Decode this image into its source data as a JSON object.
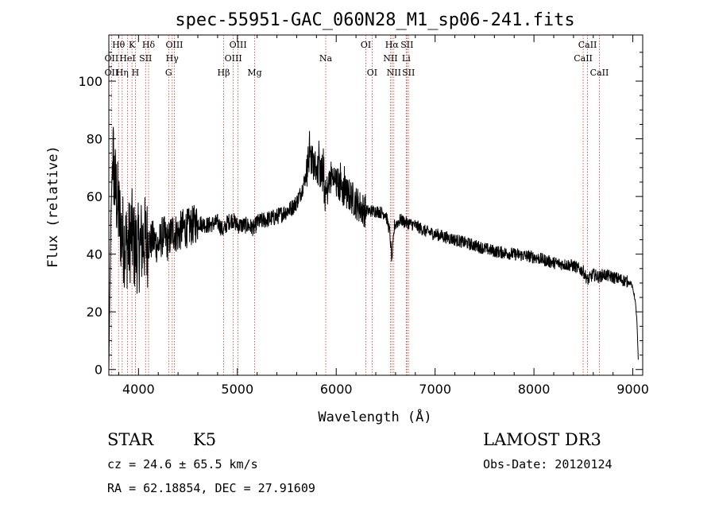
{
  "chart_data": {
    "type": "line",
    "title": "spec-55951-GAC_060N28_M1_sp06-241.fits",
    "xlabel": "Wavelength (Å)",
    "ylabel": "Flux (relative)",
    "xlim": [
      3700,
      9100
    ],
    "ylim": [
      -2,
      116
    ],
    "xticks": [
      4000,
      5000,
      6000,
      7000,
      8000,
      9000
    ],
    "yticks": [
      0,
      20,
      40,
      60,
      80,
      100
    ],
    "grid": false,
    "spectrum_anchors": {
      "x": [
        3700,
        3720,
        3740,
        3760,
        3780,
        3800,
        3830,
        3860,
        3900,
        3930,
        3960,
        4000,
        4050,
        4100,
        4150,
        4200,
        4250,
        4300,
        4340,
        4400,
        4450,
        4500,
        4550,
        4600,
        4700,
        4800,
        4860,
        4900,
        4950,
        5000,
        5100,
        5170,
        5200,
        5300,
        5400,
        5500,
        5550,
        5600,
        5650,
        5700,
        5730,
        5760,
        5800,
        5850,
        5890,
        5950,
        6000,
        6050,
        6100,
        6150,
        6200,
        6250,
        6300,
        6400,
        6500,
        6540,
        6563,
        6590,
        6650,
        6700,
        6800,
        6900,
        7000,
        7200,
        7400,
        7600,
        7800,
        8000,
        8200,
        8400,
        8500,
        8542,
        8600,
        8662,
        8700,
        8800,
        8900,
        8980,
        9000,
        9020,
        9040,
        9055
      ],
      "y": [
        0,
        52,
        75,
        64,
        60,
        54,
        47,
        44,
        43,
        48,
        42,
        42,
        45,
        44,
        45,
        43,
        47,
        44,
        48,
        47,
        49,
        49,
        50,
        51,
        50,
        51,
        48,
        51,
        52,
        50,
        50,
        49,
        51,
        52,
        53,
        55,
        56,
        58,
        62,
        68,
        75,
        72,
        70,
        68,
        60,
        67,
        65,
        63,
        61,
        60,
        58,
        56,
        55,
        55,
        54,
        48,
        38,
        50,
        52,
        51,
        50,
        48,
        47,
        45,
        43,
        41,
        40,
        39,
        37,
        36,
        34,
        31,
        33,
        32,
        33,
        32,
        31,
        30,
        28,
        25,
        18,
        3
      ]
    },
    "emission_lines": [
      {
        "label": "Hθ",
        "x": 3798,
        "row": 1
      },
      {
        "label": "OII",
        "x": 3727,
        "row": 2
      },
      {
        "label": "OII",
        "x": 3727,
        "row": 3
      },
      {
        "label": "K",
        "x": 3934,
        "row": 1
      },
      {
        "label": "HeI",
        "x": 3889,
        "row": 2
      },
      {
        "label": "Hη",
        "x": 3835,
        "row": 3
      },
      {
        "label": "H",
        "x": 3969,
        "row": 3
      },
      {
        "label": "Hδ",
        "x": 4102,
        "row": 1
      },
      {
        "label": "SII",
        "x": 4072,
        "row": 2
      },
      {
        "label": "OIII",
        "x": 4363,
        "row": 1
      },
      {
        "label": "Hγ",
        "x": 4341,
        "row": 2
      },
      {
        "label": "G",
        "x": 4305,
        "row": 3
      },
      {
        "label": "Hβ",
        "x": 4861,
        "row": 3
      },
      {
        "label": "OIII",
        "x": 5007,
        "row": 1
      },
      {
        "label": "OIII",
        "x": 4959,
        "row": 2
      },
      {
        "label": "Mg",
        "x": 5175,
        "row": 3
      },
      {
        "label": "Na",
        "x": 5894,
        "row": 2
      },
      {
        "label": "OI",
        "x": 6300,
        "row": 1
      },
      {
        "label": "OI",
        "x": 6363,
        "row": 3
      },
      {
        "label": "Hα",
        "x": 6563,
        "row": 1
      },
      {
        "label": "SII",
        "x": 6716,
        "row": 1
      },
      {
        "label": "NII",
        "x": 6548,
        "row": 2
      },
      {
        "label": "Li",
        "x": 6708,
        "row": 2
      },
      {
        "label": "NII",
        "x": 6583,
        "row": 3
      },
      {
        "label": "SII",
        "x": 6731,
        "row": 3
      },
      {
        "label": "CaII",
        "x": 8542,
        "row": 1
      },
      {
        "label": "CaII",
        "x": 8498,
        "row": 2
      },
      {
        "label": "CaII",
        "x": 8662,
        "row": 3
      }
    ]
  },
  "info": {
    "class": "STAR",
    "subclass": "K5",
    "survey": "LAMOST DR3",
    "cz": "cz = 24.6 ± 65.5 km/s",
    "obs_date": "Obs-Date: 20120124",
    "coords": "RA =  62.18854, DEC =  27.91609"
  }
}
